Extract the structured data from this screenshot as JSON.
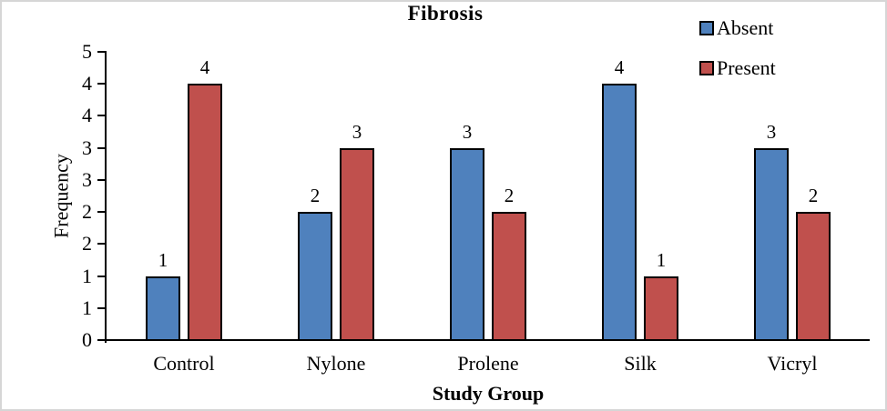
{
  "chart_data": {
    "type": "bar",
    "title": "Fibrosis",
    "xlabel": "Study Group",
    "ylabel": "Frequency",
    "categories": [
      "Control",
      "Nylone",
      "Prolene",
      "Silk",
      "Vicryl"
    ],
    "series": [
      {
        "name": "Absent",
        "color": "#4F81BD",
        "values": [
          1,
          2,
          3,
          4,
          3
        ]
      },
      {
        "name": "Present",
        "color": "#C0504D",
        "values": [
          4,
          3,
          2,
          1,
          2
        ]
      }
    ],
    "y_axis": {
      "min": 0,
      "max": 4.5,
      "major_unit": 0.5,
      "tick_labels_bottom_to_top": [
        "0",
        "1",
        "1",
        "2",
        "2",
        "3",
        "3",
        "4",
        "4",
        "5"
      ]
    },
    "data_labels_shown": true,
    "legend_position": "top-right",
    "grid": false,
    "bar_border_color": "#000000",
    "axis_color": "#000000",
    "frame_border_color": "#D6D6D6"
  }
}
